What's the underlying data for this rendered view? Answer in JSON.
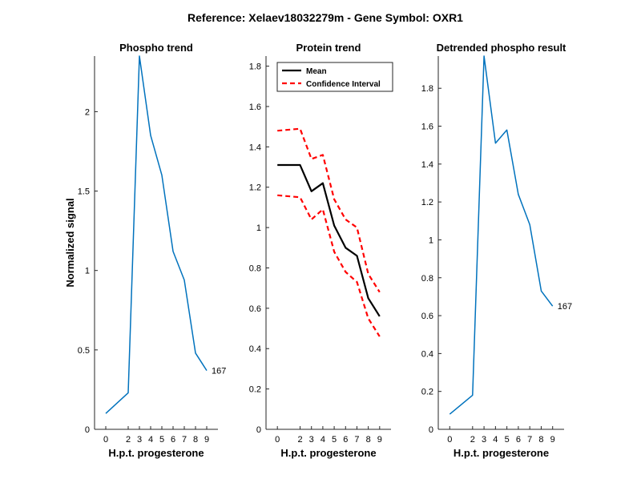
{
  "figure": {
    "suptitle": "Reference:  Xelaev18032279m - Gene Symbol:  OXR1",
    "colors": {
      "phospho": "#0072BD",
      "mean": "#000000",
      "ci": "#FF0000",
      "axis": "#262626"
    }
  },
  "chart_data": [
    {
      "type": "line",
      "title": "Phospho trend",
      "xlabel": "H.p.t. progesterone",
      "ylabel": "Normalized signal",
      "x": [
        0,
        2,
        3,
        4,
        5,
        6,
        7,
        8,
        9
      ],
      "xticks": [
        "0",
        "2",
        "3",
        "4",
        "5",
        "6",
        "7",
        "8",
        "9"
      ],
      "ylim": [
        0,
        2.35
      ],
      "yticks": [
        0,
        0.5,
        1,
        1.5,
        2
      ],
      "ytick_labels": [
        "0",
        "0.5",
        "1",
        "1.5",
        "2"
      ],
      "series": [
        {
          "values": [
            0.1,
            0.23,
            2.35,
            1.85,
            1.6,
            1.12,
            0.94,
            0.48,
            0.37
          ]
        }
      ],
      "end_label": "167",
      "grid": false
    },
    {
      "type": "line",
      "title": "Protein trend",
      "xlabel": "H.p.t. progesterone",
      "ylabel": "",
      "x": [
        0,
        2,
        3,
        4,
        5,
        6,
        7,
        8,
        9
      ],
      "xticks": [
        "0",
        "2",
        "3",
        "4",
        "5",
        "6",
        "7",
        "8",
        "9"
      ],
      "ylim": [
        0,
        1.85
      ],
      "yticks": [
        0,
        0.2,
        0.4,
        0.6,
        0.8,
        1,
        1.2,
        1.4,
        1.6,
        1.8
      ],
      "ytick_labels": [
        "0",
        "0.2",
        "0.4",
        "0.6",
        "0.8",
        "1",
        "1.2",
        "1.4",
        "1.6",
        "1.8"
      ],
      "series": [
        {
          "name": "Mean",
          "values": [
            1.31,
            1.31,
            1.18,
            1.22,
            1.01,
            0.9,
            0.86,
            0.65,
            0.56
          ]
        },
        {
          "name": "Confidence Interval",
          "values": [
            1.48,
            1.49,
            1.34,
            1.36,
            1.14,
            1.04,
            1.0,
            0.77,
            0.68
          ]
        },
        {
          "values": [
            1.16,
            1.15,
            1.04,
            1.09,
            0.88,
            0.78,
            0.73,
            0.55,
            0.46
          ]
        }
      ],
      "legend": "top-left",
      "grid": false
    },
    {
      "type": "line",
      "title": "Detrended phospho result",
      "xlabel": "H.p.t. progesterone",
      "ylabel": "",
      "x": [
        0,
        2,
        3,
        4,
        5,
        6,
        7,
        8,
        9
      ],
      "xticks": [
        "0",
        "2",
        "3",
        "4",
        "5",
        "6",
        "7",
        "8",
        "9"
      ],
      "ylim": [
        0,
        1.97
      ],
      "yticks": [
        0,
        0.2,
        0.4,
        0.6,
        0.8,
        1,
        1.2,
        1.4,
        1.6,
        1.8
      ],
      "ytick_labels": [
        "0",
        "0.2",
        "0.4",
        "0.6",
        "0.8",
        "1",
        "1.2",
        "1.4",
        "1.6",
        "1.8"
      ],
      "series": [
        {
          "values": [
            0.08,
            0.18,
            1.97,
            1.51,
            1.58,
            1.24,
            1.08,
            0.73,
            0.65
          ]
        }
      ],
      "end_label": "167",
      "grid": false
    }
  ]
}
